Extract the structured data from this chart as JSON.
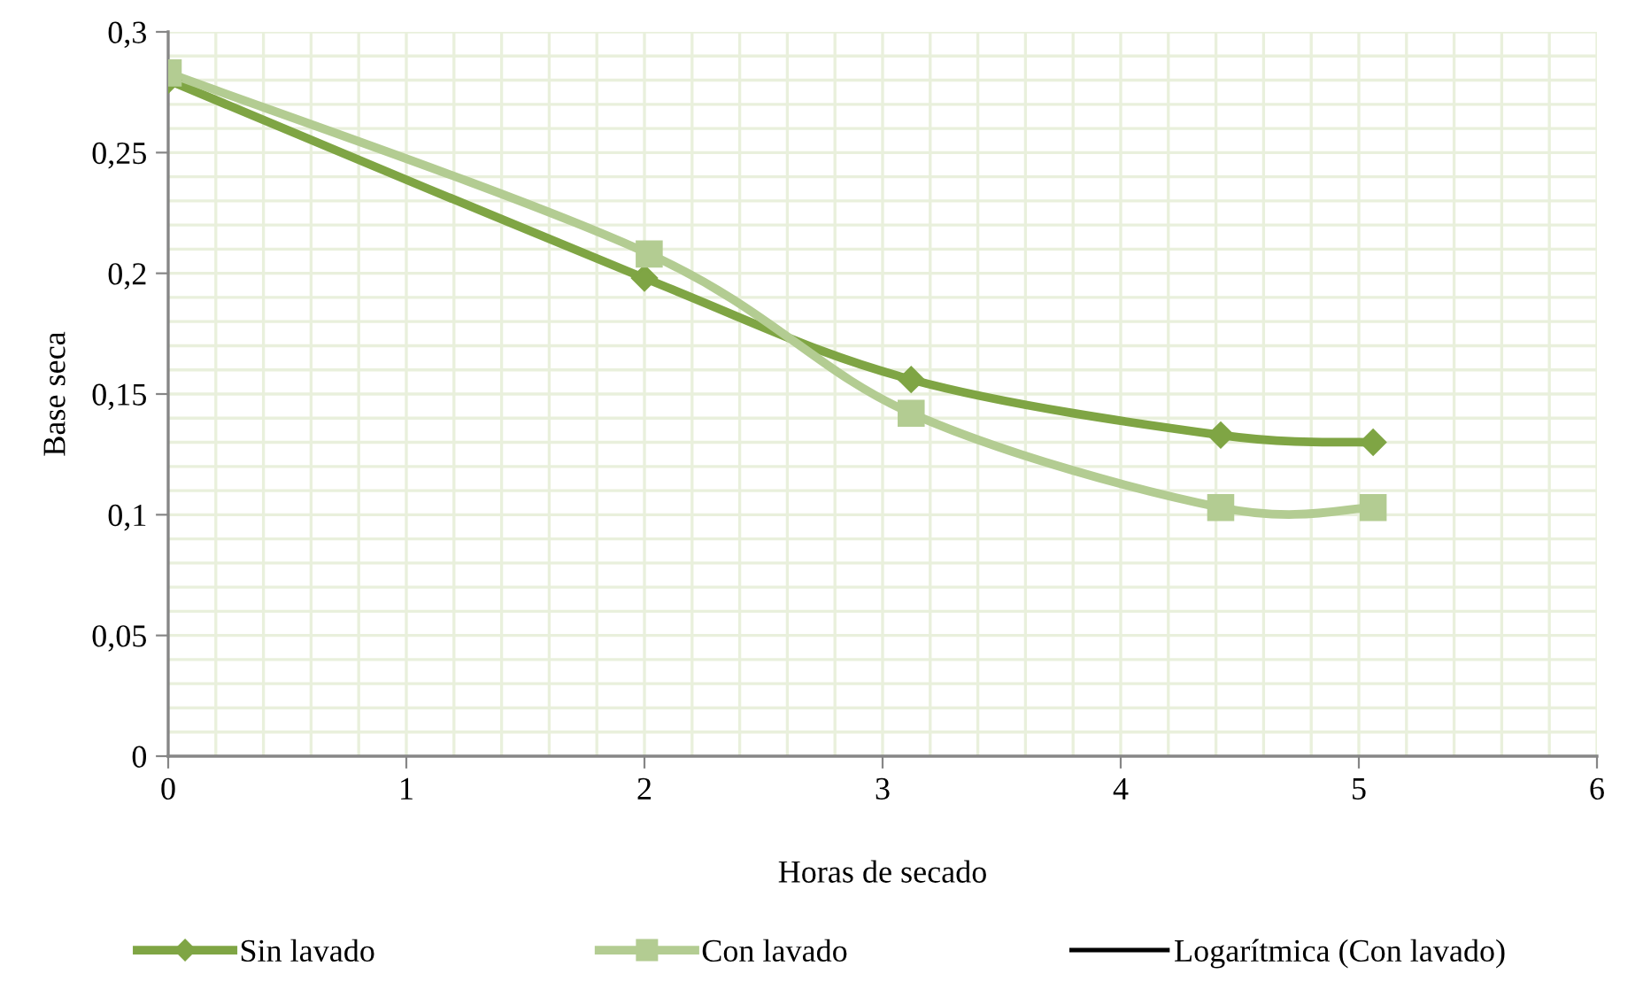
{
  "chart_data": {
    "type": "line",
    "xlabel": "Horas de secado",
    "ylabel": "Base seca",
    "xlim": [
      0,
      6
    ],
    "xticks": [
      0,
      1,
      2,
      3,
      4,
      5,
      6
    ],
    "ylim": [
      0,
      0.3
    ],
    "yticks": [
      {
        "value": 0,
        "label": "0"
      },
      {
        "value": 0.05,
        "label": "0,05"
      },
      {
        "value": 0.1,
        "label": "0,1"
      },
      {
        "value": 0.15,
        "label": "0,15"
      },
      {
        "value": 0.2,
        "label": "0,2"
      },
      {
        "value": 0.25,
        "label": "0,25"
      },
      {
        "value": 0.3,
        "label": "0,3"
      }
    ],
    "grid": true,
    "legend": "bottom",
    "series": [
      {
        "name": "Sin lavado",
        "color": "#7fa544",
        "marker": "diamond",
        "x": [
          0,
          2,
          3.12,
          4.42,
          5.06
        ],
        "values": [
          0.28,
          0.198,
          0.156,
          0.133,
          0.13
        ]
      },
      {
        "name": "Con lavado",
        "color": "#b3cc92",
        "marker": "square",
        "x": [
          0,
          2.02,
          3.12,
          4.42,
          5.06
        ],
        "values": [
          0.283,
          0.208,
          0.142,
          0.103,
          0.103
        ]
      },
      {
        "name": "Logarítmica (Con lavado)",
        "color": "#000000",
        "marker": "none"
      }
    ]
  }
}
